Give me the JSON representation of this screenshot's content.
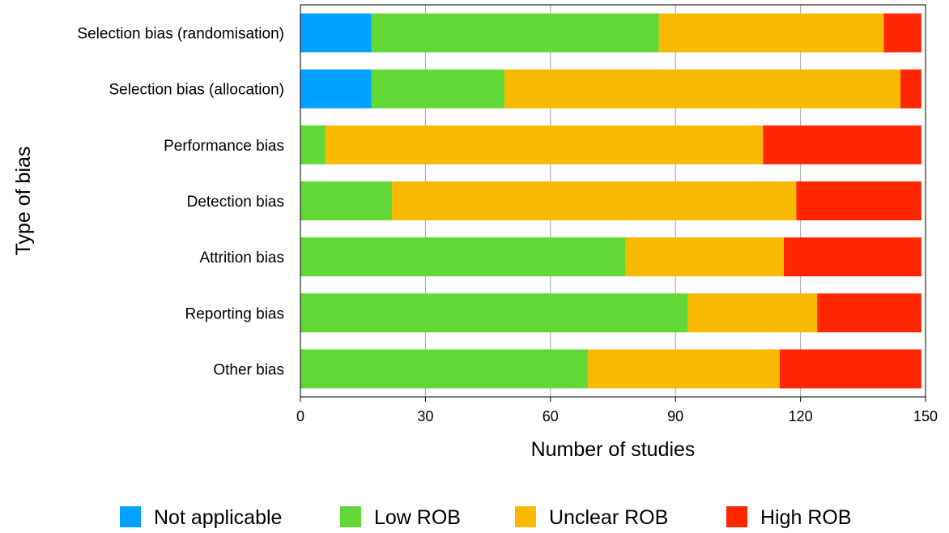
{
  "chart_data": {
    "type": "bar",
    "orientation": "horizontal",
    "stacked": true,
    "categories": [
      "Selection bias (randomisation)",
      "Selection bias (allocation)",
      "Performance bias",
      "Detection bias",
      "Attrition bias",
      "Reporting bias",
      "Other bias"
    ],
    "series": [
      {
        "name": "Not applicable",
        "color": "#00A2FF",
        "values": [
          17,
          17,
          0,
          0,
          0,
          0,
          0
        ]
      },
      {
        "name": "Low ROB",
        "color": "#61D836",
        "values": [
          69,
          32,
          6,
          22,
          78,
          93,
          69
        ]
      },
      {
        "name": "Unclear ROB",
        "color": "#F8BA00",
        "values": [
          54,
          95,
          105,
          97,
          38,
          31,
          46
        ]
      },
      {
        "name": "High ROB",
        "color": "#FF2600",
        "values": [
          9,
          5,
          38,
          30,
          33,
          25,
          34
        ]
      }
    ],
    "xlabel": "Number of studies",
    "ylabel": "Type of bias",
    "xlim": [
      0,
      150
    ],
    "xticks": [
      0,
      30,
      60,
      90,
      120,
      150
    ],
    "grid": "vertical",
    "legend": "bottom"
  }
}
